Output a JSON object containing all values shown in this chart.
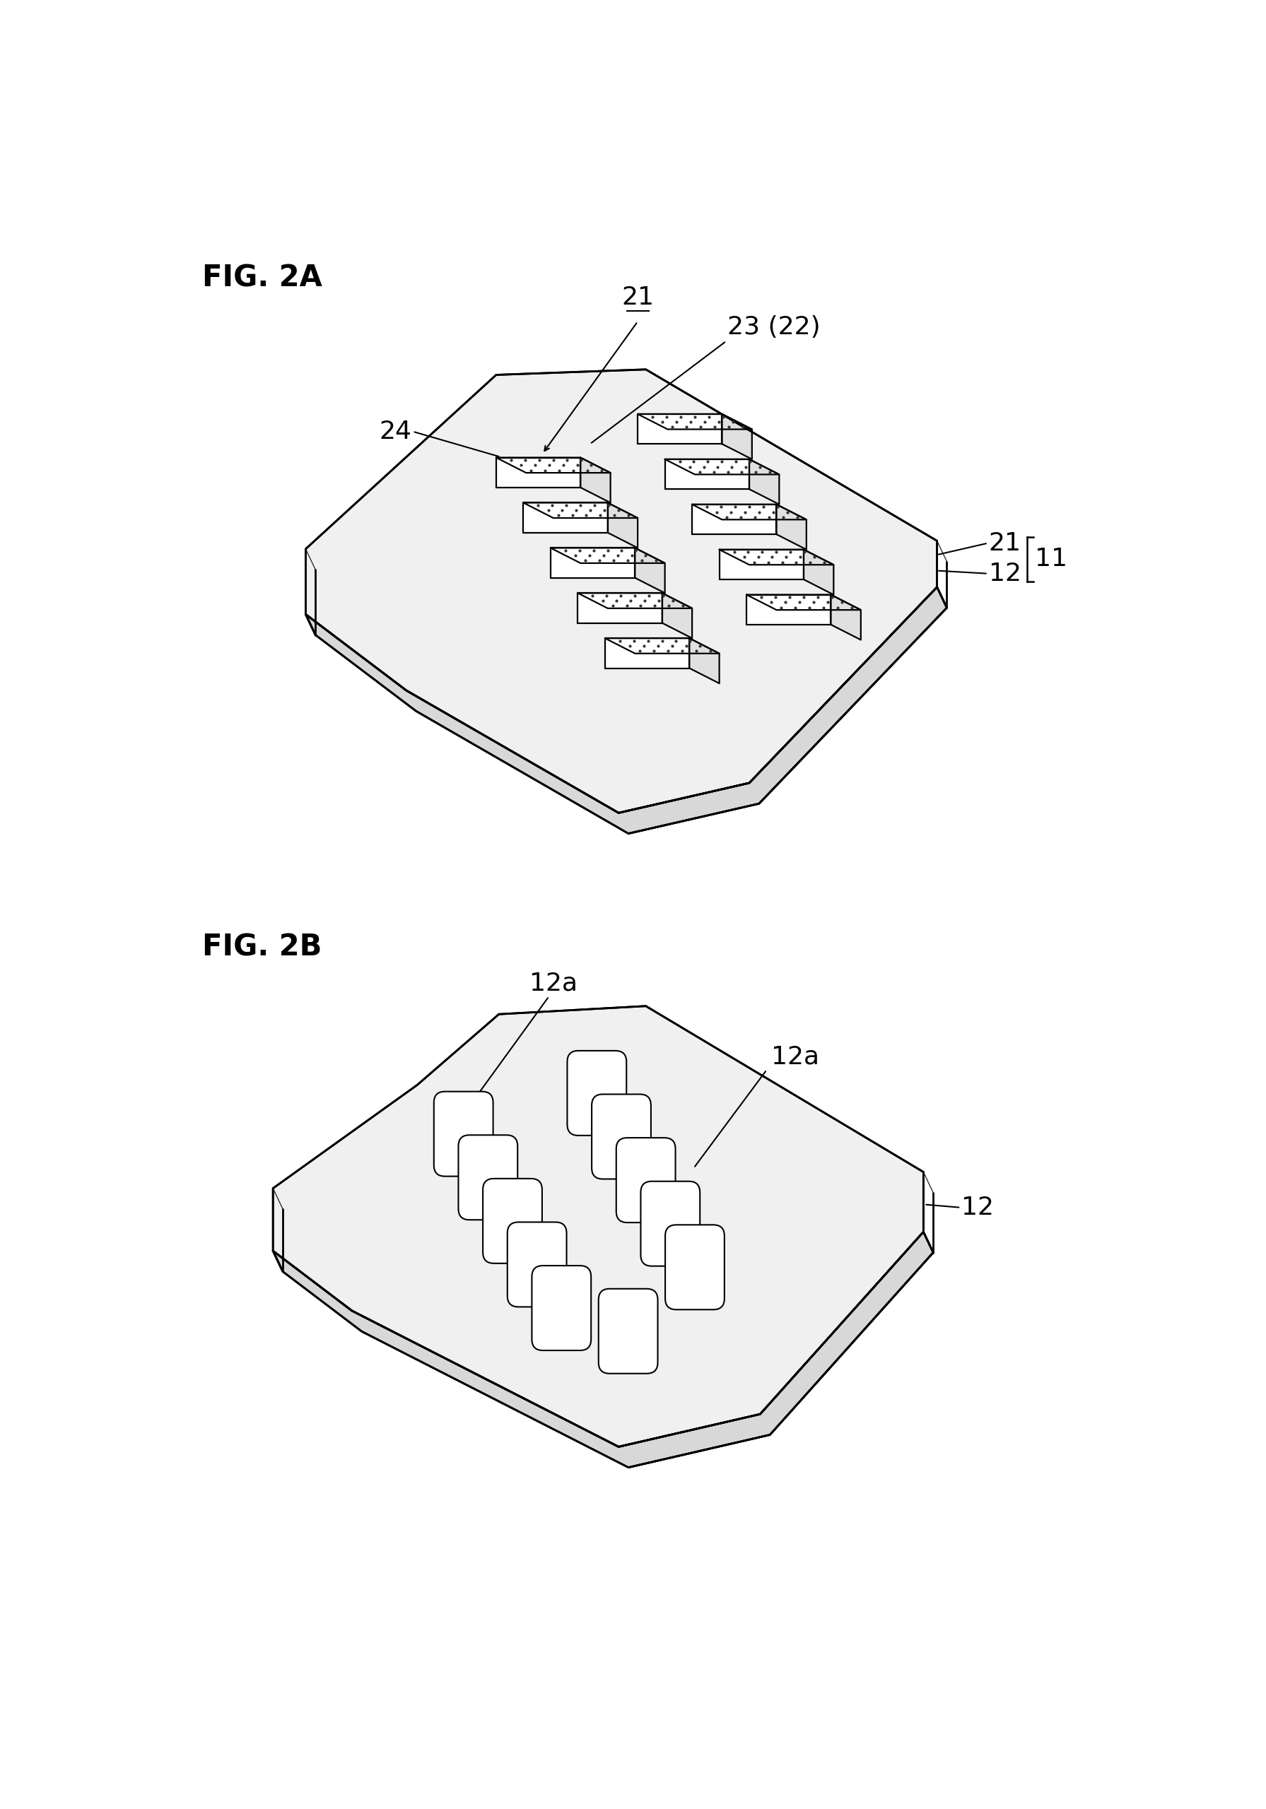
{
  "fig_label_2A": "FIG. 2A",
  "fig_label_2B": "FIG. 2B",
  "label_21": "21",
  "label_22": "23 (22)",
  "label_24": "24",
  "label_11": "11",
  "label_12a_top": "12",
  "label_12a_bot": "21",
  "label_12a_1": "12a",
  "label_12a_2": "12a",
  "label_12_2b": "12",
  "bg_color": "#ffffff",
  "line_color": "#000000",
  "font_size_label": 26,
  "font_size_fig": 30,
  "lw_plate": 2.0,
  "lw_block": 1.6,
  "lw_label": 1.5
}
